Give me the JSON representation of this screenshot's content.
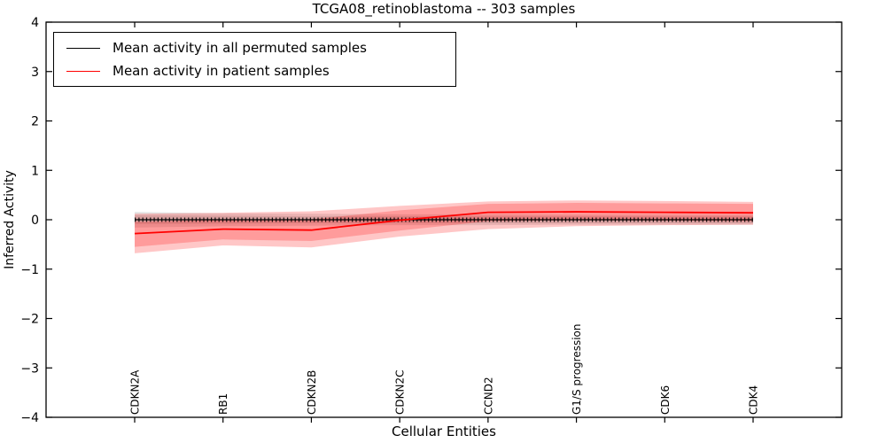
{
  "title": "TCGA08_retinoblastoma -- 303 samples",
  "legend": {
    "items": [
      {
        "label": "Mean activity in all permuted samples",
        "color": "#000000"
      },
      {
        "label": "Mean activity in patient samples",
        "color": "#ff0000"
      }
    ]
  },
  "chart_data": {
    "type": "line",
    "title": "TCGA08_retinoblastoma -- 303 samples",
    "xlabel": "Cellular Entities",
    "ylabel": "Inferred Activity",
    "ylim": [
      -4,
      4
    ],
    "yticks": [
      -4,
      -3,
      -2,
      -1,
      0,
      1,
      2,
      3,
      4
    ],
    "ytick_labels": [
      "−4",
      "−3",
      "−2",
      "−1",
      "0",
      "1",
      "2",
      "3",
      "4"
    ],
    "grid": false,
    "legend_position": "upper left",
    "categories": [
      "CDKN2A",
      "RB1",
      "CDKN2B",
      "CDKN2C",
      "CCND2",
      "G1/S progression",
      "CDK6",
      "CDK4"
    ],
    "series": [
      {
        "name": "Mean activity in all permuted samples",
        "color": "#000000",
        "marker": "tick",
        "width": 1.2,
        "values": [
          0.0,
          0.0,
          0.0,
          0.0,
          0.0,
          0.0,
          0.0,
          0.0
        ]
      },
      {
        "name": "Mean activity in patient samples",
        "color": "#ff0000",
        "marker": "none",
        "width": 1.8,
        "values": [
          -0.28,
          -0.19,
          -0.21,
          -0.01,
          0.15,
          0.16,
          0.15,
          0.14
        ]
      }
    ],
    "bands": [
      {
        "name": "permuted-outer-band",
        "color": "rgba(0,0,0,0.10)",
        "top": [
          0.16,
          0.13,
          0.12,
          0.11,
          0.11,
          0.1,
          0.1,
          0.1
        ],
        "bottom": [
          -0.16,
          -0.13,
          -0.12,
          -0.11,
          -0.11,
          -0.1,
          -0.1,
          -0.1
        ]
      },
      {
        "name": "permuted-inner-band",
        "color": "rgba(0,0,0,0.10)",
        "top": [
          0.09,
          0.08,
          0.07,
          0.07,
          0.07,
          0.07,
          0.07,
          0.07
        ],
        "bottom": [
          -0.09,
          -0.08,
          -0.07,
          -0.07,
          -0.07,
          -0.07,
          -0.07,
          -0.07
        ]
      },
      {
        "name": "patient-outer-band",
        "color": "rgba(255,0,0,0.22)",
        "top": [
          0.12,
          0.14,
          0.17,
          0.28,
          0.37,
          0.39,
          0.38,
          0.36
        ],
        "bottom": [
          -0.68,
          -0.52,
          -0.56,
          -0.34,
          -0.19,
          -0.13,
          -0.11,
          -0.1
        ]
      },
      {
        "name": "patient-inner-band",
        "color": "rgba(255,0,0,0.22)",
        "top": [
          -0.04,
          0.0,
          0.01,
          0.19,
          0.32,
          0.34,
          0.33,
          0.32
        ],
        "bottom": [
          -0.55,
          -0.4,
          -0.43,
          -0.22,
          -0.03,
          -0.01,
          -0.02,
          -0.03
        ]
      }
    ]
  }
}
